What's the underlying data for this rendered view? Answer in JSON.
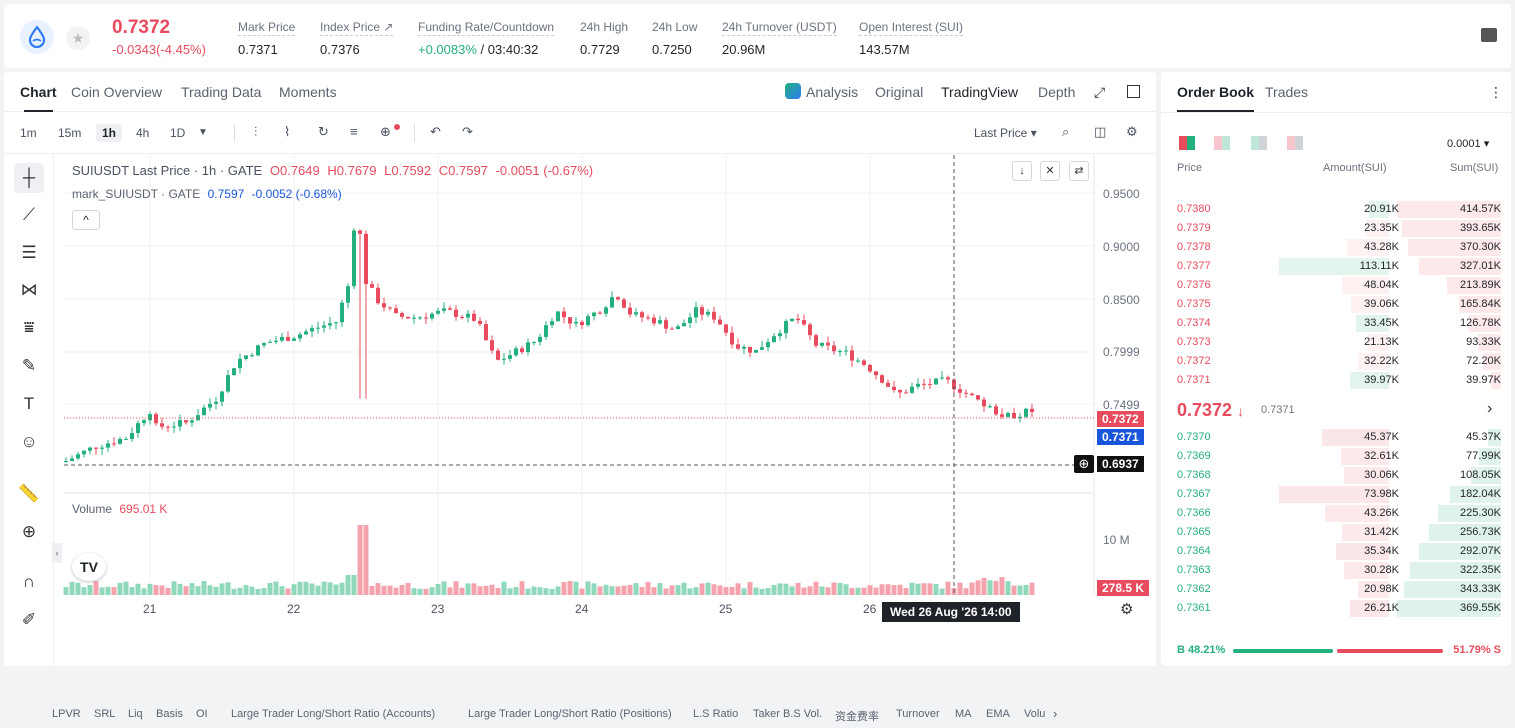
{
  "header": {
    "last_price": "0.7372",
    "change": "-0.0343(-4.45%)",
    "stats": [
      {
        "label": "Mark Price",
        "value": "0.7371"
      },
      {
        "label": "Index Price ↗",
        "value": "0.7376"
      },
      {
        "label": "Funding Rate/Countdown",
        "value": "+0.0083%",
        "value2": "/ 03:40:32"
      },
      {
        "label": "24h High",
        "value": "0.7729"
      },
      {
        "label": "24h Low",
        "value": "0.7250"
      },
      {
        "label": "24h Turnover (USDT)",
        "value": "20.96M"
      },
      {
        "label": "Open Interest (SUI)",
        "value": "143.57M"
      }
    ]
  },
  "chart_tabs": [
    "Chart",
    "Coin Overview",
    "Trading Data",
    "Moments"
  ],
  "view_tabs": [
    "Analysis",
    "Original",
    "TradingView",
    "Depth"
  ],
  "timeframes": [
    "1m",
    "15m",
    "1h",
    "4h",
    "1D"
  ],
  "price_type": "Last Price",
  "legend": {
    "symbol": "SUIUSDT Last Price · 1h · GATE",
    "o": "O0.7649",
    "h": "H0.7679",
    "l": "L0.7592",
    "c": "C0.7597",
    "change": "-0.0051 (-0.67%)",
    "mark_label": "mark_SUIUSDT · GATE",
    "mark_value": "0.7597",
    "mark_change": "-0.0052 (-0.68%)"
  },
  "volume_label": "Volume",
  "volume_value": "695.01 K",
  "price_ticks": [
    "0.9500",
    "0.9000",
    "0.8500",
    "0.7999",
    "0.7499"
  ],
  "vol_tick": "10 M",
  "tags": {
    "last": "0.7372",
    "mark": "0.7371",
    "cross": "0.6937",
    "vol": "278.5 K"
  },
  "date_ticks": [
    "21",
    "22",
    "23",
    "24",
    "25",
    "26"
  ],
  "crosshair_date": "Wed 26 Aug '26   14:00",
  "indicators": [
    "LPVR",
    "SRL",
    "Liq",
    "Basis",
    "OI",
    "Large Trader Long/Short Ratio (Accounts)",
    "Large Trader Long/Short Ratio (Positions)",
    "L.S Ratio",
    "Taker B.S Vol.",
    "资金费率",
    "Turnover",
    "MA",
    "EMA",
    "Volu"
  ],
  "orderbook": {
    "tabs": [
      "Order Book",
      "Trades"
    ],
    "precision": "0.0001",
    "headers": [
      "Price",
      "Amount(SUI)",
      "Sum(SUI)"
    ],
    "asks": [
      {
        "price": "0.7380",
        "amount": "20.91K",
        "sum": "414.57K"
      },
      {
        "price": "0.7379",
        "amount": "23.35K",
        "sum": "393.65K"
      },
      {
        "price": "0.7378",
        "amount": "43.28K",
        "sum": "370.30K"
      },
      {
        "price": "0.7377",
        "amount": "113.11K",
        "sum": "327.01K"
      },
      {
        "price": "0.7376",
        "amount": "48.04K",
        "sum": "213.89K"
      },
      {
        "price": "0.7375",
        "amount": "39.06K",
        "sum": "165.84K"
      },
      {
        "price": "0.7374",
        "amount": "33.45K",
        "sum": "126.78K"
      },
      {
        "price": "0.7373",
        "amount": "21.13K",
        "sum": "93.33K"
      },
      {
        "price": "0.7372",
        "amount": "32.22K",
        "sum": "72.20K"
      },
      {
        "price": "0.7371",
        "amount": "39.97K",
        "sum": "39.97K"
      }
    ],
    "mid_price": "0.7372",
    "mid_mark": "0.7371",
    "bids": [
      {
        "price": "0.7370",
        "amount": "45.37K",
        "sum": "45.37K"
      },
      {
        "price": "0.7369",
        "amount": "32.61K",
        "sum": "77.99K"
      },
      {
        "price": "0.7368",
        "amount": "30.06K",
        "sum": "108.05K"
      },
      {
        "price": "0.7367",
        "amount": "73.98K",
        "sum": "182.04K"
      },
      {
        "price": "0.7366",
        "amount": "43.26K",
        "sum": "225.30K"
      },
      {
        "price": "0.7365",
        "amount": "31.42K",
        "sum": "256.73K"
      },
      {
        "price": "0.7364",
        "amount": "35.34K",
        "sum": "292.07K"
      },
      {
        "price": "0.7363",
        "amount": "30.28K",
        "sum": "322.35K"
      },
      {
        "price": "0.7362",
        "amount": "20.98K",
        "sum": "343.33K"
      },
      {
        "price": "0.7361",
        "amount": "26.21K",
        "sum": "369.55K"
      }
    ],
    "buy_ratio": "B 48.21%",
    "sell_ratio": "51.79% S"
  },
  "colors": {
    "up": "#23b07c",
    "down": "#e84b5e",
    "accent": "#1a56db"
  }
}
